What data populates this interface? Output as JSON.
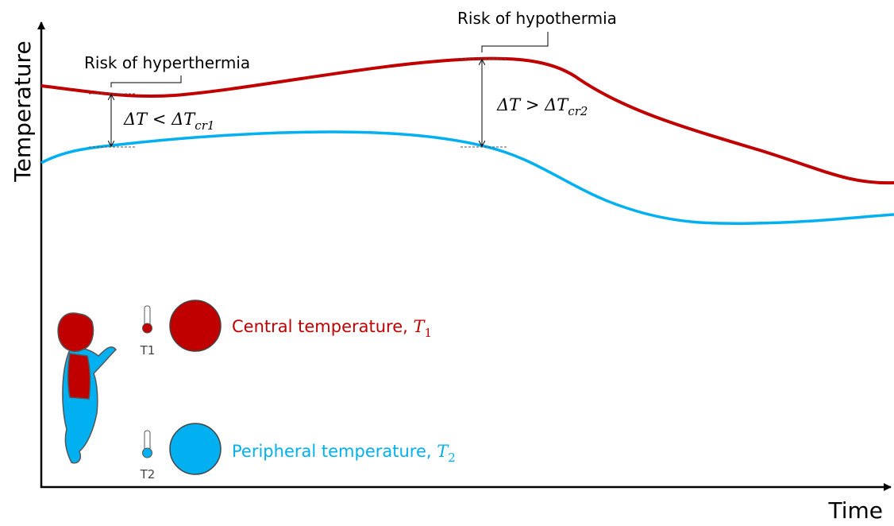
{
  "axes": {
    "y_label": "Temperature",
    "x_label": "Time"
  },
  "annotations": [
    {
      "label": "Risk of hyperthermia",
      "formula": "ΔT < ΔT",
      "subscript": "cr1"
    },
    {
      "label": "Risk of hypothermia",
      "formula": "ΔT > ΔT",
      "subscript": "cr2"
    }
  ],
  "legend": [
    {
      "label": "Central temperature, ",
      "symbol": "T",
      "subscript": "1",
      "thermometer": "T1",
      "color": "#c00000"
    },
    {
      "label": "Peripheral temperature, ",
      "symbol": "T",
      "subscript": "2",
      "thermometer": "T2",
      "color": "#00b0f0"
    }
  ]
}
